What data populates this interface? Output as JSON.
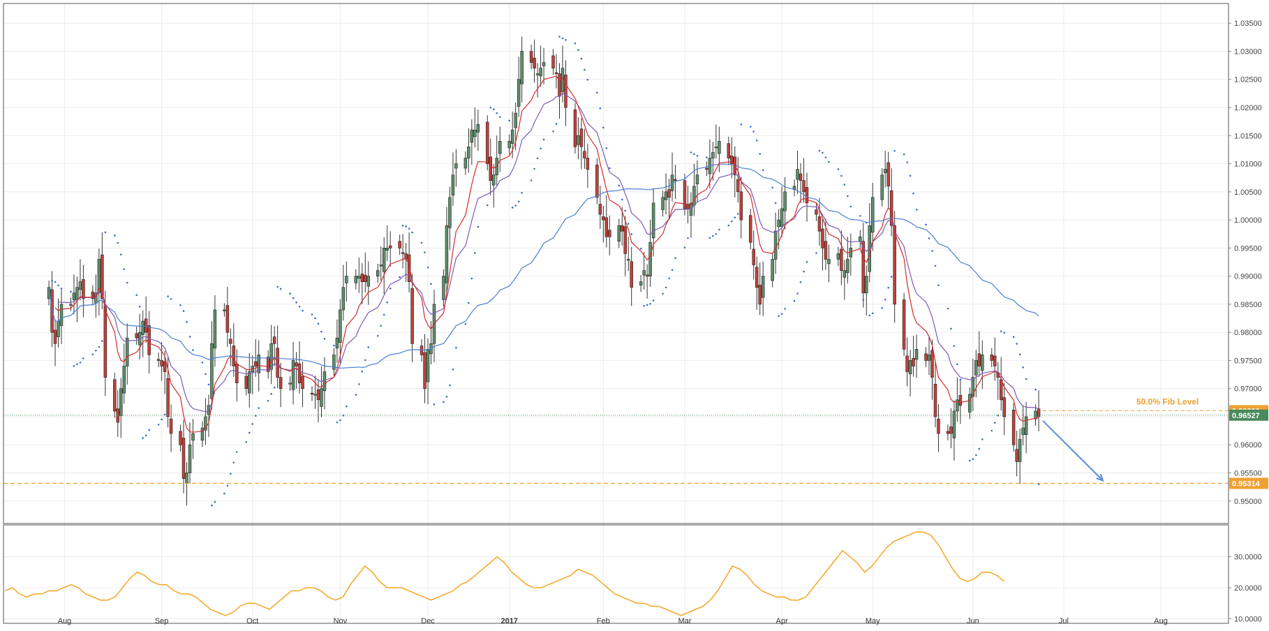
{
  "chart_data": [
    {
      "type": "candlestick",
      "pane": "price",
      "y_axis": {
        "range": [
          0.946,
          1.0385
        ],
        "ticks": [
          0.95,
          0.955,
          0.96,
          0.965,
          0.97,
          0.975,
          0.98,
          0.985,
          0.99,
          0.995,
          1.0,
          1.005,
          1.01,
          1.015,
          1.02,
          1.025,
          1.03,
          1.035
        ],
        "tick_labels": [
          "0.95000",
          "0.95500",
          "0.96000",
          "0.96500",
          "0.97000",
          "0.97500",
          "0.98000",
          "0.98500",
          "0.99000",
          "0.99500",
          "1.00000",
          "1.00500",
          "1.01000",
          "1.01500",
          "1.02000",
          "1.02500",
          "1.03000",
          "1.03500"
        ],
        "position": "right",
        "grid": true
      },
      "x_axis": {
        "tick_labels": [
          "Aug",
          "Sep",
          "Oct",
          "Nov",
          "Dec",
          "2017",
          "Feb",
          "Mar",
          "Apr",
          "May",
          "Jun",
          "Jul",
          "Aug"
        ],
        "tick_days": [
          5,
          36,
          65,
          93,
          121,
          147,
          177,
          203,
          234,
          263,
          295,
          324,
          355
        ],
        "range_days": [
          -14.5,
          376.6
        ],
        "grid": true
      },
      "annotation": {
        "fib_label": "50.0% Fib Level",
        "fib_price": 0.96606,
        "fib_price_label": "0.96606",
        "current_price": 0.96527,
        "current_price_label": "0.96527",
        "support_price": 0.95314,
        "support_price_label": "0.95314"
      },
      "candles_close": [
        0.988,
        0.98,
        0.978,
        0.982,
        0.985,
        0.985,
        0.987,
        0.988,
        0.989,
        0.986,
        0.986,
        0.987,
        0.993,
        0.986,
        0.972,
        0.966,
        0.964,
        0.97,
        0.974,
        0.979,
        0.979,
        0.98,
        0.982,
        0.98,
        0.976,
        0.975,
        0.974,
        0.973,
        0.965,
        0.962,
        0.96,
        0.954,
        0.955,
        0.96,
        0.962,
        0.963,
        0.965,
        0.967,
        0.978,
        0.984,
        0.984,
        0.98,
        0.978,
        0.974,
        0.971,
        0.97,
        0.973,
        0.974,
        0.974,
        0.976,
        0.973,
        0.978,
        0.978,
        0.972,
        0.97,
        0.971,
        0.975,
        0.974,
        0.971,
        0.97,
        0.969,
        0.969,
        0.968,
        0.97,
        0.973,
        0.976,
        0.979,
        0.984,
        0.988,
        0.99,
        0.99,
        0.99,
        0.989,
        0.989,
        0.99,
        0.991,
        0.992,
        0.995,
        0.995,
        0.995,
        0.995,
        0.994,
        0.993,
        0.989,
        0.978,
        0.976,
        0.97,
        0.977,
        0.978,
        0.985,
        0.99,
        0.999,
        1.004,
        1.008,
        1.01,
        1.011,
        1.013,
        1.016,
        1.016,
        1.017,
        1.01,
        1.007,
        1.008,
        1.011,
        1.014,
        1.014,
        1.016,
        1.019,
        1.025,
        1.03,
        1.028,
        1.027,
        1.026,
        1.027,
        1.028,
        1.027,
        1.026,
        1.022,
        1.027,
        1.02,
        1.013,
        1.015,
        1.013,
        1.011,
        1.009,
        1.004,
        1.001,
        1.0,
        0.997,
        0.997,
        0.999,
        0.998,
        0.994,
        0.993,
        0.988,
        0.989,
        0.991,
        0.99,
        0.996,
        1.003,
        1.004,
        1.005,
        1.004,
        1.008,
        1.007,
        1.002,
        1.002,
        1.003,
        1.006,
        1.008,
        1.009,
        1.011,
        1.012,
        1.013,
        1.014,
        1.011,
        1.01,
        1.008,
        1.005,
        1.0,
        0.996,
        0.992,
        0.988,
        0.985,
        0.99,
        0.993,
        0.998,
        1.0,
        1.002,
        1.005,
        1.006,
        1.009,
        1.007,
        1.005,
        1.003,
        1.001,
        0.998,
        0.995,
        0.993,
        0.993,
        0.994,
        0.991,
        0.991,
        0.993,
        0.995,
        0.997,
        0.987,
        0.99,
        0.999,
        1.004,
        1.008,
        1.009,
        1.006,
        0.999,
        0.985,
        0.977,
        0.973,
        0.975,
        0.974,
        0.977,
        0.975,
        0.976,
        0.972,
        0.965,
        0.962,
        0.962,
        0.962,
        0.966,
        0.968,
        0.967,
        0.969,
        0.972,
        0.975,
        0.974,
        0.976,
        0.975,
        0.974,
        0.972,
        0.968,
        0.965,
        0.96,
        0.957,
        0.961,
        0.963,
        0.965,
        0.966,
        0.965
      ]
    },
    {
      "type": "line",
      "pane": "indicator",
      "y_axis": {
        "range": [
          8.5,
          40.3
        ],
        "ticks": [
          10,
          20,
          30
        ],
        "tick_labels": [
          "10.0000",
          "20.0000",
          "30.0000"
        ],
        "position": "right",
        "grid": true
      },
      "series": [
        {
          "color": "#f5a623",
          "values": [
            19,
            20,
            18,
            17,
            18,
            18,
            19,
            19,
            20,
            21,
            20,
            18,
            17,
            16,
            16,
            17,
            20,
            23,
            25,
            24,
            22,
            21,
            21,
            19,
            18,
            18,
            17,
            15,
            13,
            12,
            11,
            12,
            14,
            15,
            15,
            14,
            13,
            15,
            17,
            19,
            19,
            20,
            20,
            19,
            17,
            16,
            17,
            21,
            24,
            27,
            25,
            22,
            20,
            20,
            20,
            19,
            18,
            17,
            16,
            17,
            18,
            19,
            21,
            22,
            24,
            26,
            28,
            30,
            28,
            25,
            23,
            21,
            20,
            20,
            21,
            22,
            23,
            24,
            26,
            25,
            24,
            22,
            20,
            18,
            17,
            16,
            15,
            15,
            14,
            14,
            13,
            12,
            11,
            12,
            13,
            14,
            16,
            19,
            23,
            27,
            26,
            24,
            21,
            19,
            18,
            17,
            17,
            16,
            16,
            17,
            20,
            23,
            26,
            29,
            32,
            30,
            28,
            25,
            27,
            30,
            33,
            35,
            36,
            37,
            38,
            38,
            37,
            34,
            30,
            26,
            23,
            22,
            23,
            25,
            25,
            24,
            22
          ]
        }
      ]
    }
  ],
  "colors": {
    "bull": "#5d8e6a",
    "bear": "#c0413a",
    "ma_fast": "#d22b2b",
    "ma_mid": "#7e5ab5",
    "ma_slow": "#4a7fd4",
    "sar": "#3a6bc9",
    "fib": "#f0a030",
    "current_tag": "#4a8a5c",
    "arrow": "#5b8bd6",
    "adx": "#f5a623"
  }
}
